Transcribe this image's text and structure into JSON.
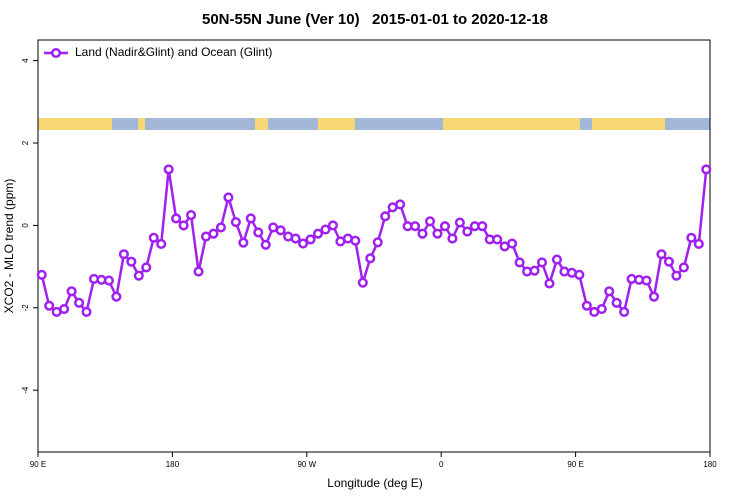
{
  "chart_data": {
    "type": "line",
    "title": "50N-55N June (Ver 10)   2015-01-01 to 2020-12-18",
    "x_label": "Longitude (deg E)",
    "y_label": "XCO2 - MLO trend (ppm)",
    "xlim": [
      90,
      540
    ],
    "xticks": [
      {
        "value": 90,
        "label": "90 E"
      },
      {
        "value": 180,
        "label": "180"
      },
      {
        "value": 270,
        "label": "90 W"
      },
      {
        "value": 360,
        "label": "0"
      },
      {
        "value": 450,
        "label": "90 E"
      },
      {
        "value": 540,
        "label": "180"
      }
    ],
    "ylim": [
      -5.5,
      4.5
    ],
    "yticks": [
      -4,
      -2,
      0,
      2,
      4
    ],
    "legend": "top-left",
    "x": [
      92.5,
      97.5,
      102.5,
      107.5,
      112.5,
      117.5,
      122.5,
      127.5,
      132.5,
      137.5,
      142.5,
      147.5,
      152.5,
      157.5,
      162.5,
      167.5,
      172.5,
      177.5,
      182.5,
      187.5,
      192.5,
      197.5,
      202.5,
      207.5,
      212.5,
      217.5,
      222.5,
      227.5,
      232.5,
      237.5,
      242.5,
      247.5,
      252.5,
      257.5,
      262.5,
      267.5,
      272.5,
      277.5,
      282.5,
      287.5,
      292.5,
      297.5,
      302.5,
      307.5,
      312.5,
      317.5,
      322.5,
      327.5,
      332.5,
      337.5,
      342.5,
      347.5,
      352.5,
      357.5,
      362.5,
      367.5,
      372.5,
      377.5,
      382.5,
      387.5,
      392.5,
      397.5,
      402.5,
      407.5,
      412.5,
      417.5,
      422.5,
      427.5,
      432.5,
      437.5,
      442.5,
      447.5,
      452.5,
      457.5,
      462.5,
      467.5,
      472.5,
      477.5,
      482.5,
      487.5,
      492.5,
      497.5,
      502.5,
      507.5,
      512.5,
      517.5,
      522.5,
      527.5,
      532.5,
      537.5
    ],
    "series": [
      {
        "name": "Land (Nadir&Glint) and Ocean (Glint)",
        "color": "#a020f0",
        "values": [
          -1.2,
          -1.95,
          -2.1,
          -2.03,
          -1.6,
          -1.88,
          -2.1,
          -1.3,
          -1.32,
          -1.34,
          -1.73,
          -0.7,
          -0.88,
          -1.22,
          -1.02,
          -0.3,
          -0.45,
          1.36,
          0.17,
          0.0,
          0.25,
          -1.12,
          -0.27,
          -0.2,
          -0.05,
          0.68,
          0.08,
          -0.42,
          0.17,
          -0.17,
          -0.47,
          -0.05,
          -0.12,
          -0.27,
          -0.32,
          -0.44,
          -0.34,
          -0.2,
          -0.1,
          0.0,
          -0.39,
          -0.32,
          -0.37,
          -1.39,
          -0.8,
          -0.41,
          0.22,
          0.44,
          0.51,
          -0.02,
          -0.02,
          -0.2,
          0.1,
          -0.2,
          -0.02,
          -0.32,
          0.07,
          -0.15,
          -0.02,
          -0.02,
          -0.34,
          -0.34,
          -0.51,
          -0.44,
          -0.9,
          -1.12,
          -1.1,
          -0.9,
          -1.41,
          -0.83,
          -1.12,
          -1.15,
          -1.2,
          -1.95,
          -2.1,
          -2.03,
          -1.6,
          -1.88,
          -2.1,
          -1.3,
          -1.32,
          -1.34,
          -1.73,
          -0.7,
          -0.88,
          -1.22,
          -1.02,
          -0.3,
          -0.45,
          1.36
        ]
      }
    ]
  }
}
